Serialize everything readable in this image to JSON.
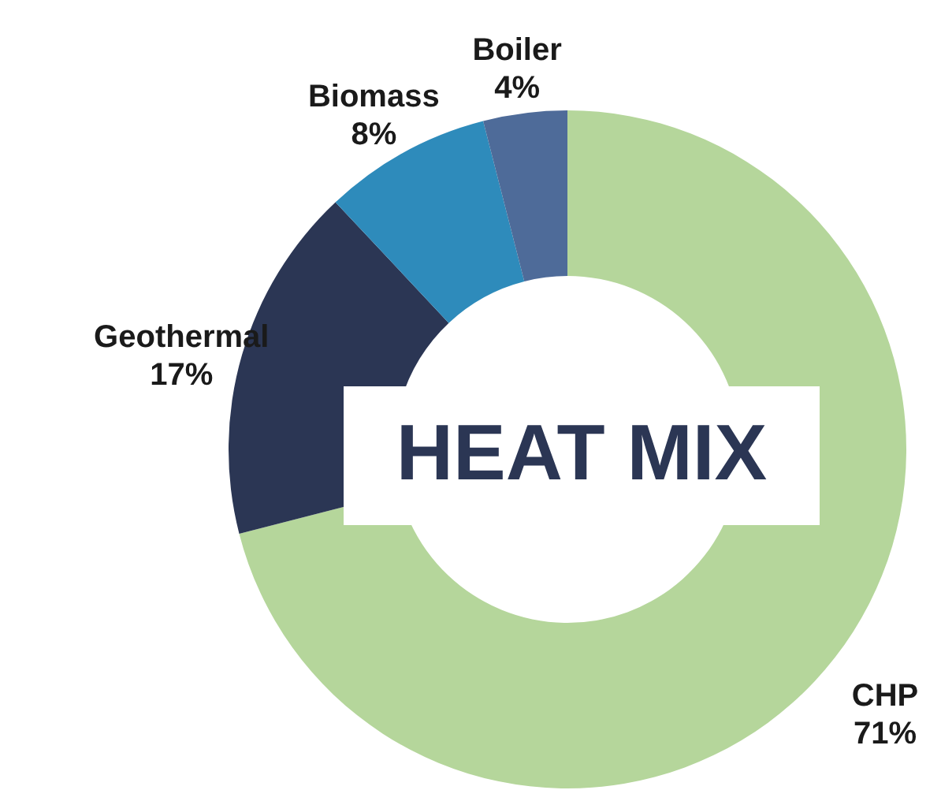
{
  "chart_data": {
    "type": "donut",
    "title": "HEAT MIX",
    "categories": [
      "CHP",
      "Geothermal",
      "Biomass",
      "Boiler"
    ],
    "values": [
      71,
      17,
      8,
      4
    ],
    "colors": [
      "#b5d69b",
      "#2b3654",
      "#2e8bbb",
      "#4e6b99"
    ],
    "value_labels": [
      "71%",
      "17%",
      "8%",
      "4%"
    ]
  }
}
